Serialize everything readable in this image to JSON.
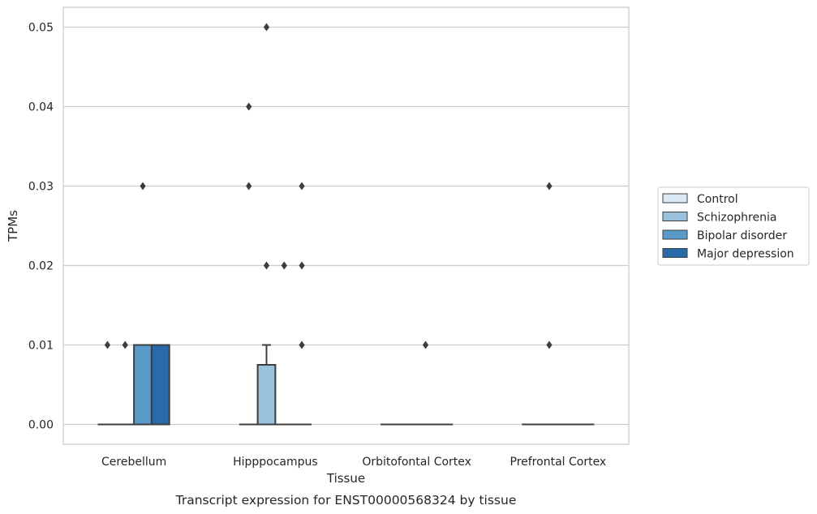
{
  "chart_data": {
    "type": "box",
    "title": "",
    "caption": "Transcript expression for ENST00000568324 by tissue",
    "xlabel": "Tissue",
    "ylabel": "TPMs",
    "ylim": [
      -0.0025,
      0.0525
    ],
    "yticks": [
      0.0,
      0.01,
      0.02,
      0.03,
      0.04,
      0.05
    ],
    "ytick_labels": [
      "0.00",
      "0.01",
      "0.02",
      "0.03",
      "0.04",
      "0.05"
    ],
    "grid": "horizontal",
    "legend_position": "right",
    "categories": [
      "Cerebellum",
      "Hipppocampus",
      "Orbitofontal Cortex",
      "Prefrontal Cortex"
    ],
    "series": [
      {
        "name": "Control",
        "color": "#dbe9f6",
        "boxes": [
          {
            "q1": 0,
            "median": 0,
            "q3": 0,
            "whisker_low": 0,
            "whisker_high": 0,
            "outliers": [
              0.01
            ]
          },
          {
            "q1": 0,
            "median": 0,
            "q3": 0,
            "whisker_low": 0,
            "whisker_high": 0,
            "outliers": [
              0.03,
              0.04
            ]
          },
          {
            "q1": 0,
            "median": 0,
            "q3": 0,
            "whisker_low": 0,
            "whisker_high": 0,
            "outliers": []
          },
          {
            "q1": 0,
            "median": 0,
            "q3": 0,
            "whisker_low": 0,
            "whisker_high": 0,
            "outliers": []
          }
        ]
      },
      {
        "name": "Schizophrenia",
        "color": "#9ac1dd",
        "boxes": [
          {
            "q1": 0,
            "median": 0,
            "q3": 0,
            "whisker_low": 0,
            "whisker_high": 0,
            "outliers": [
              0.01
            ]
          },
          {
            "q1": 0,
            "median": 0,
            "q3": 0.0075,
            "whisker_low": 0,
            "whisker_high": 0.01,
            "outliers": [
              0.02,
              0.05
            ]
          },
          {
            "q1": 0,
            "median": 0,
            "q3": 0,
            "whisker_low": 0,
            "whisker_high": 0,
            "outliers": []
          },
          {
            "q1": 0,
            "median": 0,
            "q3": 0,
            "whisker_low": 0,
            "whisker_high": 0,
            "outliers": [
              0.01,
              0.03
            ]
          }
        ]
      },
      {
        "name": "Bipolar disorder",
        "color": "#5a9ac9",
        "boxes": [
          {
            "q1": 0,
            "median": 0.01,
            "q3": 0.01,
            "whisker_low": 0,
            "whisker_high": 0.01,
            "outliers": [
              0.03
            ]
          },
          {
            "q1": 0,
            "median": 0,
            "q3": 0,
            "whisker_low": 0,
            "whisker_high": 0,
            "outliers": [
              0.02
            ]
          },
          {
            "q1": 0,
            "median": 0,
            "q3": 0,
            "whisker_low": 0,
            "whisker_high": 0,
            "outliers": [
              0.01
            ]
          },
          {
            "q1": 0,
            "median": 0,
            "q3": 0,
            "whisker_low": 0,
            "whisker_high": 0,
            "outliers": []
          }
        ]
      },
      {
        "name": "Major depression",
        "color": "#2a6aaa",
        "boxes": [
          {
            "q1": 0,
            "median": 0.01,
            "q3": 0.01,
            "whisker_low": 0,
            "whisker_high": 0.01,
            "outliers": []
          },
          {
            "q1": 0,
            "median": 0,
            "q3": 0,
            "whisker_low": 0,
            "whisker_high": 0,
            "outliers": [
              0.01,
              0.02,
              0.03
            ]
          },
          {
            "q1": 0,
            "median": 0,
            "q3": 0,
            "whisker_low": 0,
            "whisker_high": 0,
            "outliers": []
          },
          {
            "q1": 0,
            "median": 0,
            "q3": 0,
            "whisker_low": 0,
            "whisker_high": 0,
            "outliers": []
          }
        ]
      }
    ]
  }
}
